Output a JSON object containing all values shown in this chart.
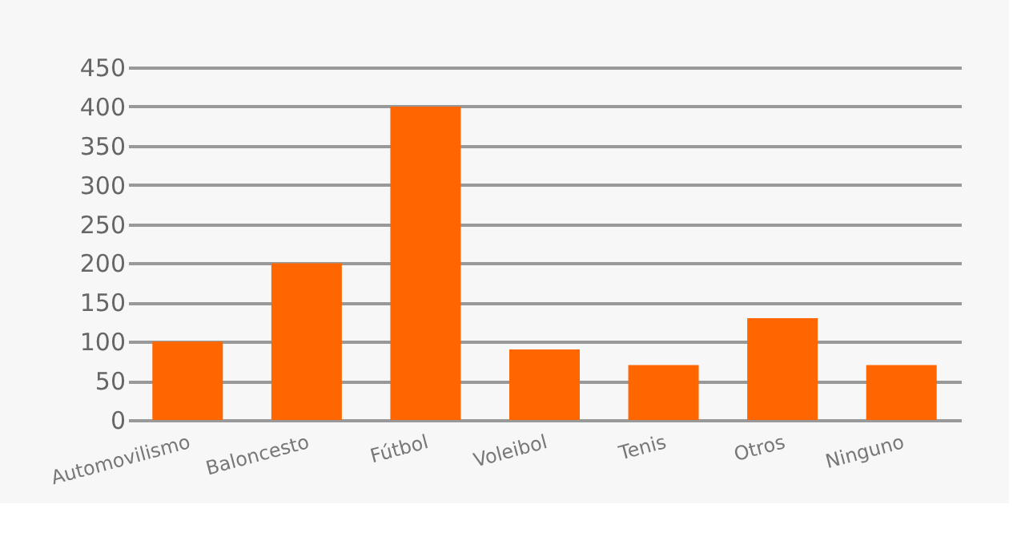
{
  "chart_data": {
    "type": "bar",
    "categories": [
      "Automovilismo",
      "Baloncesto",
      "Fútbol",
      "Voleibol",
      "Tenis",
      "Otros",
      "Ninguno"
    ],
    "values": [
      100,
      200,
      400,
      90,
      70,
      130,
      70
    ],
    "color": "#ff6600",
    "ylim": [
      0,
      450
    ],
    "yticks": [
      0,
      50,
      100,
      150,
      200,
      250,
      300,
      350,
      400,
      450
    ],
    "grid": "y"
  }
}
